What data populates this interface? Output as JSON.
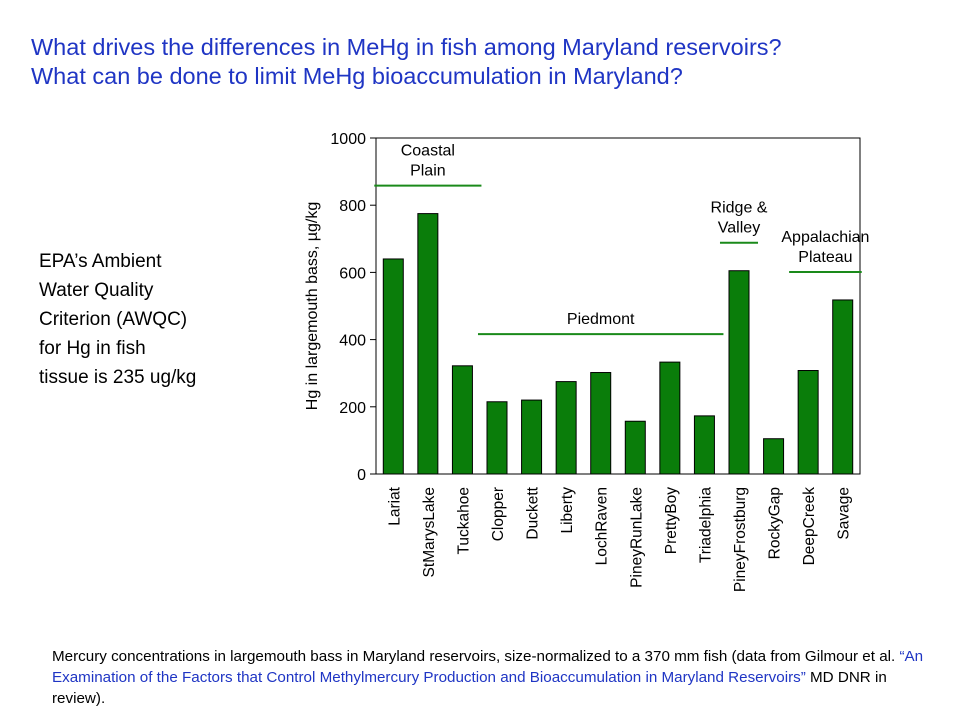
{
  "title": {
    "line1": "What drives the differences in MeHg in fish among Maryland reservoirs?",
    "line2": "What can be done to limit MeHg bioaccumulation in Maryland?"
  },
  "epa_note": {
    "lines": [
      "EPA’s Ambient",
      "Water Quality",
      "Criterion (AWQC)",
      "for Hg in  fish",
      "tissue is 235 ug/kg"
    ]
  },
  "caption": {
    "part1": "Mercury concentrations in largemouth bass in Maryland reservoirs, size-normalized to a 370 mm fish (data from Gilmour et al. ",
    "link": "“An Examination of the Factors that Control Methylmercury Production and Bioaccumulation in Maryland Reservoirs”",
    "part2": " MD DNR in review)."
  },
  "colors": {
    "bar_fill": "#0a7d0a",
    "bar_stroke": "#000000",
    "region_line": "#1a8a1a",
    "title_text": "#1f35c4"
  },
  "chart_data": {
    "type": "bar",
    "title": "",
    "xlabel": "",
    "ylabel": "Hg in largemouth bass, µg/kg",
    "ylim": [
      0,
      1000
    ],
    "yticks": [
      0,
      200,
      400,
      600,
      800,
      1000
    ],
    "grid": false,
    "categories": [
      "Lariat",
      "StMarysLake",
      "Tuckahoe",
      "Clopper",
      "Duckett",
      "Liberty",
      "LochRaven",
      "PineyRunLake",
      "PrettyBoy",
      "Triadelphia",
      "PineyFrostburg",
      "RockyGap",
      "DeepCreek",
      "Savage"
    ],
    "values": [
      640,
      775,
      322,
      215,
      220,
      275,
      302,
      157,
      333,
      173,
      605,
      105,
      308,
      518
    ],
    "regions": [
      {
        "lines": [
          "Coastal",
          "Plain"
        ],
        "first": 0,
        "last": 2
      },
      {
        "lines": [
          "Piedmont"
        ],
        "first": 3,
        "last": 9
      },
      {
        "lines": [
          "Ridge &",
          "Valley"
        ],
        "first": 10,
        "last": 10
      },
      {
        "lines": [
          "Appalachian",
          "Plateau"
        ],
        "first": 12,
        "last": 13
      }
    ]
  }
}
